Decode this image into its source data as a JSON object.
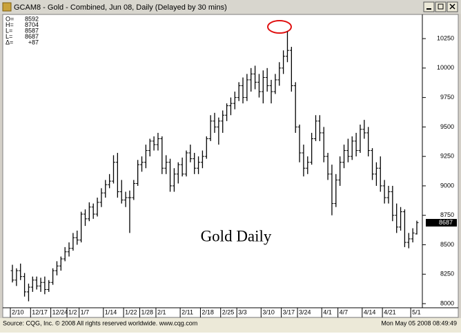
{
  "window_title": "GCAM8 - Gold - Combined, Jun 08, Daily (Delayed by 30 mins)",
  "info": [
    {
      "label": "O=",
      "value": 8592
    },
    {
      "label": "H=",
      "value": 8704
    },
    {
      "label": "L=",
      "value": 8587
    },
    {
      "label": "L=",
      "value": 8687
    },
    {
      "label": "Δ=",
      "value": "+87"
    }
  ],
  "footer": {
    "source": "Source: CQG, Inc. © 2008 All rights reserved worldwide.  www.cqg.com",
    "timestamp": "Mon May 05 2008 08:49:49"
  },
  "chart_data": {
    "type": "ohlc",
    "annotation": "Gold Daily",
    "color": "#000000",
    "categories": [
      "2/10",
      null,
      null,
      null,
      null,
      "12/17",
      null,
      null,
      null,
      null,
      "12/24",
      null,
      null,
      null,
      "1/2",
      null,
      null,
      "1/7",
      null,
      null,
      null,
      null,
      null,
      "1/14",
      null,
      null,
      null,
      null,
      "1/22",
      null,
      null,
      null,
      "1/28",
      null,
      null,
      null,
      "2/1",
      null,
      null,
      null,
      null,
      null,
      "2/11",
      null,
      null,
      null,
      null,
      "2/18",
      null,
      null,
      null,
      null,
      "2/25",
      null,
      null,
      null,
      "3/3",
      null,
      null,
      null,
      null,
      null,
      "3/10",
      null,
      null,
      null,
      null,
      "3/17",
      null,
      null,
      null,
      "3/24",
      null,
      null,
      null,
      null,
      null,
      "4/1",
      null,
      null,
      null,
      "4/7",
      null,
      null,
      null,
      null,
      null,
      "4/14",
      null,
      null,
      null,
      null,
      "4/21",
      null,
      null,
      null,
      null,
      null,
      null,
      "5/1",
      null
    ],
    "open": [
      8280,
      8200,
      8280,
      8230,
      8100,
      8140,
      8200,
      8150,
      8180,
      8120,
      8180,
      8280,
      8320,
      8380,
      8440,
      8470,
      8560,
      8540,
      8760,
      8720,
      8820,
      8760,
      8860,
      8940,
      9010,
      9040,
      9200,
      8950,
      8880,
      8900,
      8900,
      9020,
      9180,
      9200,
      9300,
      9380,
      9350,
      9400,
      9150,
      9200,
      9000,
      9100,
      9180,
      9100,
      9280,
      9230,
      9150,
      9200,
      9250,
      9400,
      9550,
      9500,
      9550,
      9600,
      9680,
      9700,
      9750,
      9850,
      9750,
      9900,
      9950,
      9880,
      9800,
      9920,
      9850,
      9800,
      9900,
      10000,
      10100,
      10150,
      9850,
      9500,
      9280,
      9150,
      9200,
      9400,
      9550,
      9450,
      9250,
      9100,
      8850,
      9050,
      9200,
      9300,
      9250,
      9380,
      9300,
      9480,
      9450,
      9300,
      9100,
      9150,
      9000,
      8900,
      8950,
      8750,
      8650,
      8780,
      8520,
      8550,
      8592
    ],
    "high": [
      8330,
      8300,
      8340,
      8260,
      8170,
      8230,
      8230,
      8220,
      8230,
      8200,
      8300,
      8360,
      8400,
      8480,
      8520,
      8600,
      8620,
      8780,
      8800,
      8860,
      8850,
      8900,
      8980,
      9050,
      9100,
      9260,
      9280,
      9050,
      8950,
      8960,
      9050,
      9220,
      9250,
      9350,
      9400,
      9420,
      9450,
      9420,
      9260,
      9230,
      9150,
      9200,
      9240,
      9300,
      9350,
      9280,
      9250,
      9300,
      9420,
      9600,
      9620,
      9580,
      9640,
      9700,
      9750,
      9800,
      9880,
      9920,
      9950,
      10000,
      10020,
      9950,
      9980,
      10000,
      9900,
      9950,
      10050,
      10150,
      10310,
      10180,
      9880,
      9520,
      9350,
      9250,
      9450,
      9600,
      9600,
      9500,
      9280,
      9180,
      9100,
      9250,
      9350,
      9400,
      9420,
      9450,
      9520,
      9560,
      9500,
      9320,
      9200,
      9250,
      9050,
      9000,
      9000,
      8850,
      8820,
      8800,
      8600,
      8640,
      8704
    ],
    "low": [
      8180,
      8150,
      8200,
      8060,
      8020,
      8100,
      8120,
      8100,
      8080,
      8100,
      8160,
      8240,
      8280,
      8360,
      8400,
      8450,
      8500,
      8520,
      8660,
      8700,
      8720,
      8740,
      8820,
      8900,
      8980,
      9020,
      8900,
      8850,
      8820,
      8600,
      8880,
      9000,
      9120,
      9150,
      9250,
      9300,
      9300,
      9100,
      9100,
      8950,
      8950,
      9020,
      9080,
      9080,
      9200,
      9100,
      9100,
      9150,
      9230,
      9380,
      9450,
      9350,
      9450,
      9550,
      9600,
      9650,
      9720,
      9700,
      9720,
      9800,
      9820,
      9750,
      9700,
      9800,
      9700,
      9780,
      9850,
      9950,
      10050,
      9800,
      9450,
      9200,
      9080,
      9100,
      9180,
      9380,
      9380,
      9200,
      9050,
      8750,
      8820,
      9000,
      9150,
      9200,
      9220,
      9250,
      9280,
      9400,
      9250,
      9050,
      9000,
      8950,
      8850,
      8850,
      8700,
      8600,
      8620,
      8480,
      8470,
      8520,
      8587
    ],
    "close": [
      8200,
      8280,
      8230,
      8100,
      8140,
      8200,
      8150,
      8180,
      8120,
      8180,
      8280,
      8320,
      8380,
      8440,
      8470,
      8560,
      8540,
      8760,
      8720,
      8820,
      8760,
      8860,
      8940,
      9010,
      9040,
      9200,
      8950,
      8880,
      8900,
      8900,
      9020,
      9180,
      9200,
      9300,
      9380,
      9350,
      9400,
      9150,
      9200,
      9000,
      9100,
      9180,
      9100,
      9280,
      9230,
      9150,
      9200,
      9250,
      9400,
      9550,
      9500,
      9550,
      9600,
      9680,
      9700,
      9750,
      9850,
      9750,
      9900,
      9950,
      9880,
      9800,
      9920,
      9850,
      9800,
      9900,
      10000,
      10100,
      10150,
      9850,
      9500,
      9280,
      9150,
      9200,
      9400,
      9550,
      9450,
      9250,
      9100,
      8850,
      9050,
      9200,
      9300,
      9250,
      9380,
      9300,
      9480,
      9450,
      9300,
      9100,
      9150,
      9000,
      8900,
      8950,
      8750,
      8650,
      8780,
      8520,
      8550,
      8600,
      8687
    ],
    "ylim": [
      7965,
      10455
    ],
    "yticks": [
      8000,
      8250,
      8500,
      8750,
      9000,
      9250,
      9500,
      9750,
      10000,
      10250
    ]
  }
}
